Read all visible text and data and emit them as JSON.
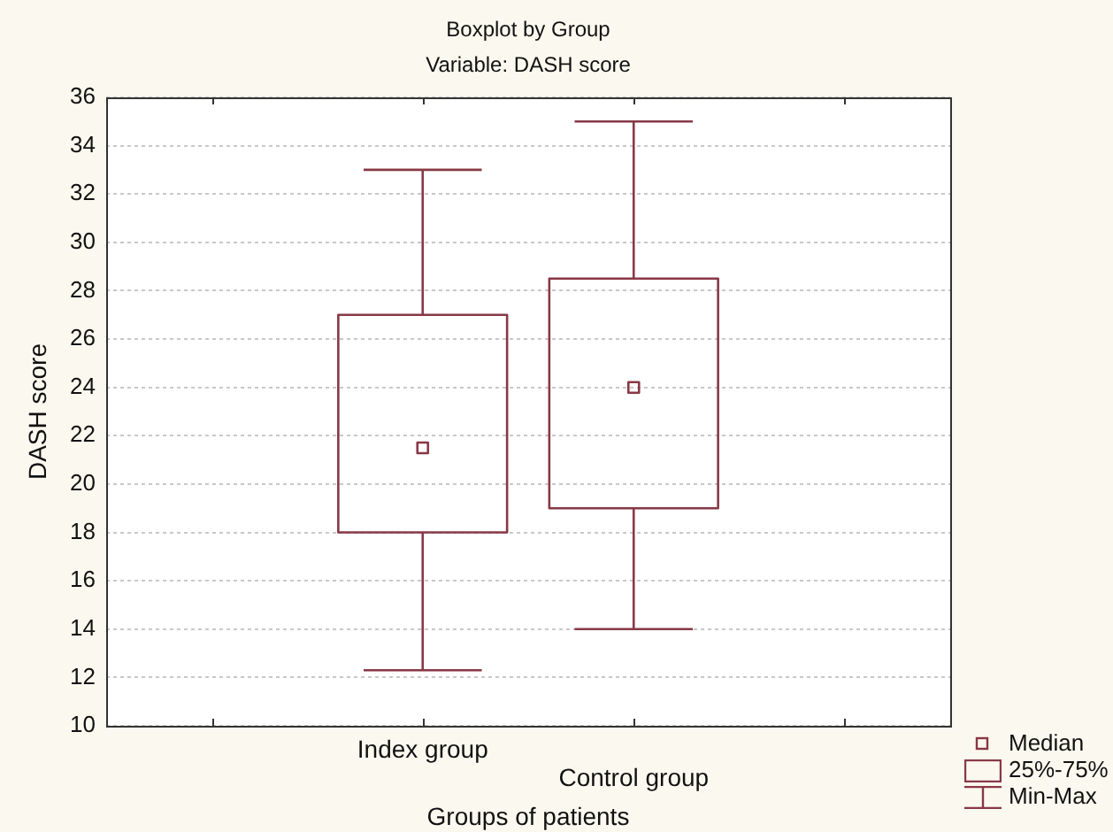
{
  "chart_data": {
    "type": "box",
    "title": "Boxplot by Group",
    "subtitle": "Variable: DASH score",
    "xlabel": "Groups of patients",
    "ylabel": "DASH score",
    "categories": [
      "Index group",
      "Control group"
    ],
    "series": [
      {
        "color": "#883845",
        "boxes": [
          {
            "low": 12.3,
            "q1": 18,
            "median": 21.5,
            "q3": 27,
            "high": 33
          },
          {
            "low": 14,
            "q1": 19,
            "median": 24,
            "q3": 28.5,
            "high": 35
          }
        ]
      }
    ],
    "ylim": [
      10,
      36
    ],
    "yticks": [
      10,
      12,
      14,
      16,
      18,
      20,
      22,
      24,
      26,
      28,
      30,
      32,
      34,
      36
    ],
    "grid": "y",
    "marker": "square",
    "annotations": [
      "Median",
      "25%-75%",
      "Min-Max"
    ]
  }
}
